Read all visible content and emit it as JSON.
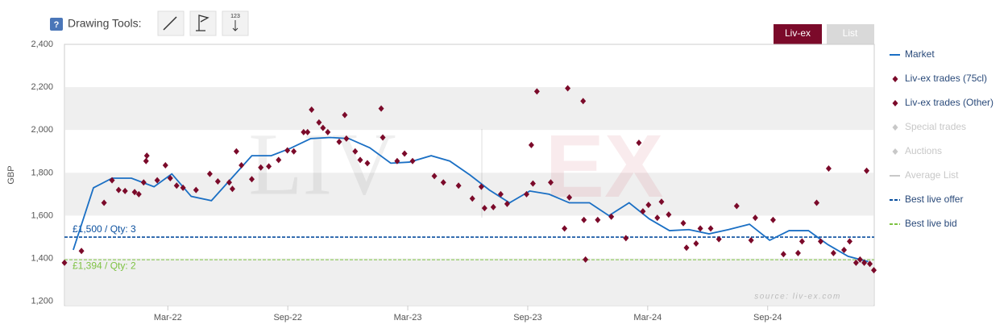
{
  "toolbar": {
    "help": "?",
    "label": "Drawing Tools:",
    "tool_caption": "123"
  },
  "view_tabs": [
    "Liv-ex",
    "List"
  ],
  "watermark": [
    "LIV",
    "EX"
  ],
  "chart_data": {
    "type": "line",
    "y_label": "GBP",
    "source": "source: liv-ex.com",
    "xlim": [
      -3.17,
      37.33
    ],
    "xticks": [
      {
        "value": 2,
        "label": "Mar-22"
      },
      {
        "value": 8,
        "label": "Sep-22"
      },
      {
        "value": 14,
        "label": "Mar-23"
      },
      {
        "value": 20,
        "label": "Sep-23"
      },
      {
        "value": 26,
        "label": "Mar-24"
      },
      {
        "value": 32,
        "label": "Sep-24"
      }
    ],
    "ylim": [
      1180,
      2400
    ],
    "yticks": [
      {
        "value": 1200,
        "label": "1,200"
      },
      {
        "value": 1400,
        "label": "1,400"
      },
      {
        "value": 1600,
        "label": "1,600"
      },
      {
        "value": 1800,
        "label": "1,800"
      },
      {
        "value": 2000,
        "label": "2,000"
      },
      {
        "value": 2200,
        "label": "2,200"
      },
      {
        "value": 2400,
        "label": "2,400"
      }
    ],
    "alternate_bands": true,
    "series": [
      {
        "name": "Market",
        "type": "line",
        "color": "#1a6fc4",
        "x": [
          -2.73,
          -1.72,
          -0.79,
          0.18,
          1.31,
          2.2,
          3.17,
          4.18,
          5.19,
          6.2,
          7.17,
          8.14,
          9.15,
          10.12,
          11.05,
          12.1,
          13.15,
          14.08,
          15.17,
          16.1,
          17.11,
          18.08,
          19.09,
          20.1,
          21.07,
          22.08,
          23.09,
          24.06,
          25.07,
          26.08,
          27.09,
          28.06,
          29.07,
          30.04,
          31.09,
          32.1,
          33.07,
          34.04,
          35.01,
          36.02,
          37.03
        ],
        "values": [
          1440,
          1730,
          1775,
          1775,
          1735,
          1795,
          1690,
          1670,
          1775,
          1880,
          1880,
          1915,
          1960,
          1965,
          1960,
          1917,
          1845,
          1850,
          1880,
          1855,
          1790,
          1720,
          1660,
          1715,
          1700,
          1660,
          1660,
          1600,
          1660,
          1585,
          1530,
          1535,
          1515,
          1535,
          1560,
          1485,
          1530,
          1530,
          1465,
          1410,
          1385
        ]
      },
      {
        "name": "Liv-ex trades (75cl)",
        "type": "scatter",
        "color": "#7b0a2a",
        "x": [
          -3.17,
          -2.32,
          -1.19,
          -0.79,
          -0.46,
          -0.14,
          0.34,
          0.55,
          0.79,
          0.91,
          0.95,
          1.47,
          1.88,
          2.12,
          2.44,
          2.76,
          3.41,
          4.1,
          4.5,
          5.07,
          5.23,
          5.43,
          5.68,
          6.2,
          6.65,
          7.05,
          7.54,
          7.98,
          8.3,
          8.79,
          8.99,
          9.19,
          9.56,
          9.76,
          10.0,
          10.57,
          10.85,
          10.93,
          11.37,
          11.62,
          11.98,
          12.67,
          12.75,
          13.47,
          13.84,
          14.24,
          15.33,
          15.78,
          16.54,
          17.23,
          17.68,
          17.84,
          18.28,
          18.65,
          18.97,
          19.94,
          20.26,
          20.46,
          21.15,
          21.84,
          22.08,
          22.81,
          22.89,
          23.5,
          24.18,
          24.91,
          25.76,
          26.04,
          26.48,
          26.69,
          27.05,
          27.78,
          27.94,
          28.42,
          28.63,
          29.15,
          29.56,
          30.45,
          31.17,
          31.38,
          32.27,
          32.79,
          33.52,
          33.72,
          34.45,
          34.65,
          35.29,
          35.82,
          36.1,
          36.42,
          36.62,
          36.83,
          37.11,
          37.31
        ],
        "values": [
          1380,
          1435,
          1660,
          1765,
          1720,
          1715,
          1710,
          1700,
          1755,
          1855,
          1880,
          1765,
          1835,
          1775,
          1740,
          1730,
          1720,
          1795,
          1760,
          1755,
          1725,
          1900,
          1835,
          1770,
          1825,
          1830,
          1860,
          1905,
          1900,
          1990,
          1990,
          2095,
          2035,
          2010,
          1990,
          1945,
          2070,
          1960,
          1900,
          1860,
          1845,
          2100,
          1965,
          1855,
          1890,
          1855,
          1785,
          1755,
          1740,
          1680,
          1735,
          1635,
          1640,
          1700,
          1655,
          1700,
          1750,
          2180,
          1755,
          1540,
          1685,
          1580,
          1395,
          1580,
          1595,
          1495,
          1620,
          1650,
          1590,
          1665,
          1605,
          1565,
          1450,
          1470,
          1540,
          1540,
          1490,
          1645,
          1485,
          1590,
          1580,
          1420,
          1425,
          1480,
          1660,
          1480,
          1425,
          1440,
          1480,
          1380,
          1395,
          1380,
          1375,
          1345
        ]
      },
      {
        "name": "Liv-ex trades (Other)",
        "type": "scatter",
        "color": "#7b0a2a",
        "x": [
          20.18,
          22.0,
          22.77,
          25.56,
          35.05,
          36.95
        ],
        "values": [
          1930,
          2195,
          2135,
          1940,
          1820,
          1810
        ]
      }
    ],
    "inactive_series": [
      {
        "name": "Special trades",
        "marker": "diamond"
      },
      {
        "name": "Auctions",
        "marker": "diamond"
      },
      {
        "name": "Average List",
        "marker": "line"
      }
    ],
    "inactive_color": "#c8c8c8",
    "reference_lines": [
      {
        "name": "Best live offer",
        "value": 1500,
        "label": "£1,500 / Qty: 3",
        "color": "#0a4f9e"
      },
      {
        "name": "Best live bid",
        "value": 1394,
        "label": "£1,394 / Qty: 2",
        "color": "#7dc242"
      }
    ]
  }
}
